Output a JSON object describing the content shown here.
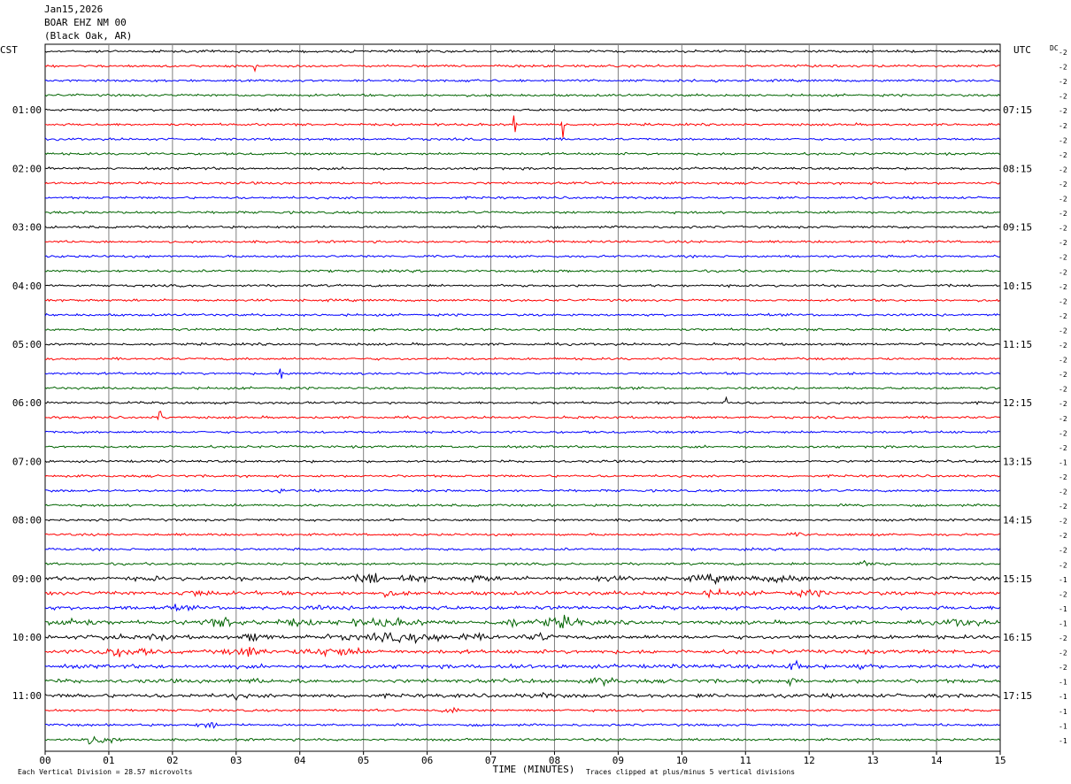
{
  "header": {
    "date": "Jan15,2026",
    "station": "BOAR EHZ NM 00",
    "location": "(Black Oak, AR)"
  },
  "left_tz": "CST",
  "right_tz": "UTC",
  "dc_label": "DC",
  "footer": {
    "scale_note": "Each Vertical Division =   28.57 microvolts",
    "xlabel": "TIME (MINUTES)",
    "clip_note": "Traces clipped at plus/minus 5 vertical divisions"
  },
  "chart_data": {
    "type": "line",
    "title": "",
    "xlabel": "TIME (MINUTES)",
    "ylabel": "",
    "xlim": [
      0,
      15
    ],
    "x_ticks": [
      "00",
      "01",
      "02",
      "03",
      "04",
      "05",
      "06",
      "07",
      "08",
      "09",
      "10",
      "11",
      "12",
      "13",
      "14",
      "15"
    ],
    "grid": true,
    "trace_count": 48,
    "trace_colors": [
      "#000000",
      "#ff0000",
      "#0000ff",
      "#006400"
    ],
    "left_hour_labels": [
      "01:00",
      "02:00",
      "03:00",
      "04:00",
      "05:00",
      "06:00",
      "07:00",
      "08:00",
      "09:00",
      "10:00",
      "11:00"
    ],
    "right_hour_labels": [
      "07:15",
      "08:15",
      "09:15",
      "10:15",
      "11:15",
      "12:15",
      "13:15",
      "14:15",
      "15:15",
      "16:15",
      "17:15"
    ],
    "dc_offsets": [
      "-2",
      "-2",
      "-2",
      "-2",
      "-2",
      "-2",
      "-2",
      "-2",
      "-2",
      "-2",
      "-2",
      "-2",
      "-2",
      "-2",
      "-2",
      "-2",
      "-2",
      "-2",
      "-2",
      "-2",
      "-2",
      "-2",
      "-2",
      "-2",
      "-2",
      "-2",
      "-2",
      "-2",
      "-1",
      "-2",
      "-2",
      "-2",
      "-2",
      "-2",
      "-2",
      "-2",
      "-1",
      "-2",
      "-1",
      "-1",
      "-2",
      "-2",
      "-2",
      "-1",
      "-1",
      "-1",
      "-1",
      "-1"
    ],
    "events": [
      {
        "trace": 5,
        "minute": 8.13,
        "amp": 4.5,
        "dur": 0.05
      },
      {
        "trace": 5,
        "minute": 7.37,
        "amp": 2.2,
        "dur": 0.05
      },
      {
        "trace": 1,
        "minute": 3.3,
        "amp": 1.2,
        "dur": 0.05
      },
      {
        "trace": 25,
        "minute": 1.8,
        "amp": 1.6,
        "dur": 0.05
      },
      {
        "trace": 22,
        "minute": 3.7,
        "amp": 1.2,
        "dur": 0.05
      },
      {
        "trace": 30,
        "minute": 3.7,
        "amp": 1.2,
        "dur": 0.1
      },
      {
        "trace": 24,
        "minute": 10.7,
        "amp": 1.4,
        "dur": 0.05
      },
      {
        "trace": 33,
        "minute": 11.8,
        "amp": 0.6,
        "dur": 0.3
      },
      {
        "trace": 35,
        "minute": 12.9,
        "amp": 0.8,
        "dur": 0.4
      },
      {
        "trace": 36,
        "minute": 10.5,
        "amp": 1.3,
        "dur": 0.7
      },
      {
        "trace": 36,
        "minute": 8.8,
        "amp": 0.8,
        "dur": 0.5
      },
      {
        "trace": 36,
        "minute": 5.1,
        "amp": 2.3,
        "dur": 0.4
      },
      {
        "trace": 36,
        "minute": 5.7,
        "amp": 1.2,
        "dur": 0.7
      },
      {
        "trace": 36,
        "minute": 6.8,
        "amp": 1.6,
        "dur": 0.4
      },
      {
        "trace": 36,
        "minute": 11.6,
        "amp": 1.3,
        "dur": 0.8
      },
      {
        "trace": 36,
        "minute": 1.7,
        "amp": 0.8,
        "dur": 0.2
      },
      {
        "trace": 37,
        "minute": 2.4,
        "amp": 1.0,
        "dur": 0.6
      },
      {
        "trace": 37,
        "minute": 5.4,
        "amp": 0.9,
        "dur": 0.3
      },
      {
        "trace": 37,
        "minute": 10.5,
        "amp": 0.9,
        "dur": 0.8
      },
      {
        "trace": 37,
        "minute": 12.0,
        "amp": 0.8,
        "dur": 0.8
      },
      {
        "trace": 38,
        "minute": 2.1,
        "amp": 0.9,
        "dur": 0.3
      },
      {
        "trace": 38,
        "minute": 4.3,
        "amp": 0.8,
        "dur": 0.2
      },
      {
        "trace": 38,
        "minute": 6.1,
        "amp": 0.5,
        "dur": 0.4
      },
      {
        "trace": 39,
        "minute": 0.4,
        "amp": 1.7,
        "dur": 0.7
      },
      {
        "trace": 39,
        "minute": 2.8,
        "amp": 1.6,
        "dur": 0.8
      },
      {
        "trace": 39,
        "minute": 3.9,
        "amp": 1.2,
        "dur": 0.6
      },
      {
        "trace": 39,
        "minute": 5.3,
        "amp": 1.3,
        "dur": 1.5
      },
      {
        "trace": 39,
        "minute": 7.3,
        "amp": 1.6,
        "dur": 0.4
      },
      {
        "trace": 39,
        "minute": 8.1,
        "amp": 2.2,
        "dur": 0.8
      },
      {
        "trace": 39,
        "minute": 14.4,
        "amp": 1.4,
        "dur": 0.6
      },
      {
        "trace": 40,
        "minute": 1.0,
        "amp": 1.6,
        "dur": 0.3
      },
      {
        "trace": 40,
        "minute": 1.8,
        "amp": 1.4,
        "dur": 0.3
      },
      {
        "trace": 40,
        "minute": 3.3,
        "amp": 1.6,
        "dur": 0.4
      },
      {
        "trace": 40,
        "minute": 5.8,
        "amp": 1.6,
        "dur": 2.4
      },
      {
        "trace": 40,
        "minute": 7.8,
        "amp": 1.3,
        "dur": 0.4
      },
      {
        "trace": 41,
        "minute": 1.2,
        "amp": 1.6,
        "dur": 1.0
      },
      {
        "trace": 41,
        "minute": 3.2,
        "amp": 1.8,
        "dur": 0.7
      },
      {
        "trace": 41,
        "minute": 4.4,
        "amp": 1.6,
        "dur": 0.7
      },
      {
        "trace": 41,
        "minute": 4.8,
        "amp": 1.3,
        "dur": 0.4
      },
      {
        "trace": 42,
        "minute": 11.8,
        "amp": 1.8,
        "dur": 0.3
      },
      {
        "trace": 42,
        "minute": 12.8,
        "amp": 1.5,
        "dur": 0.3
      },
      {
        "trace": 42,
        "minute": 7.3,
        "amp": 0.6,
        "dur": 0.5
      },
      {
        "trace": 43,
        "minute": 3.3,
        "amp": 1.2,
        "dur": 0.2
      },
      {
        "trace": 43,
        "minute": 8.8,
        "amp": 1.3,
        "dur": 0.4
      },
      {
        "trace": 43,
        "minute": 11.7,
        "amp": 0.7,
        "dur": 0.3
      },
      {
        "trace": 44,
        "minute": 3.0,
        "amp": 0.9,
        "dur": 0.3
      },
      {
        "trace": 44,
        "minute": 7.8,
        "amp": 0.8,
        "dur": 0.3
      },
      {
        "trace": 45,
        "minute": 6.4,
        "amp": 1.1,
        "dur": 0.3
      },
      {
        "trace": 46,
        "minute": 2.6,
        "amp": 1.3,
        "dur": 0.4
      },
      {
        "trace": 47,
        "minute": 0.8,
        "amp": 2.0,
        "dur": 0.6
      }
    ]
  }
}
